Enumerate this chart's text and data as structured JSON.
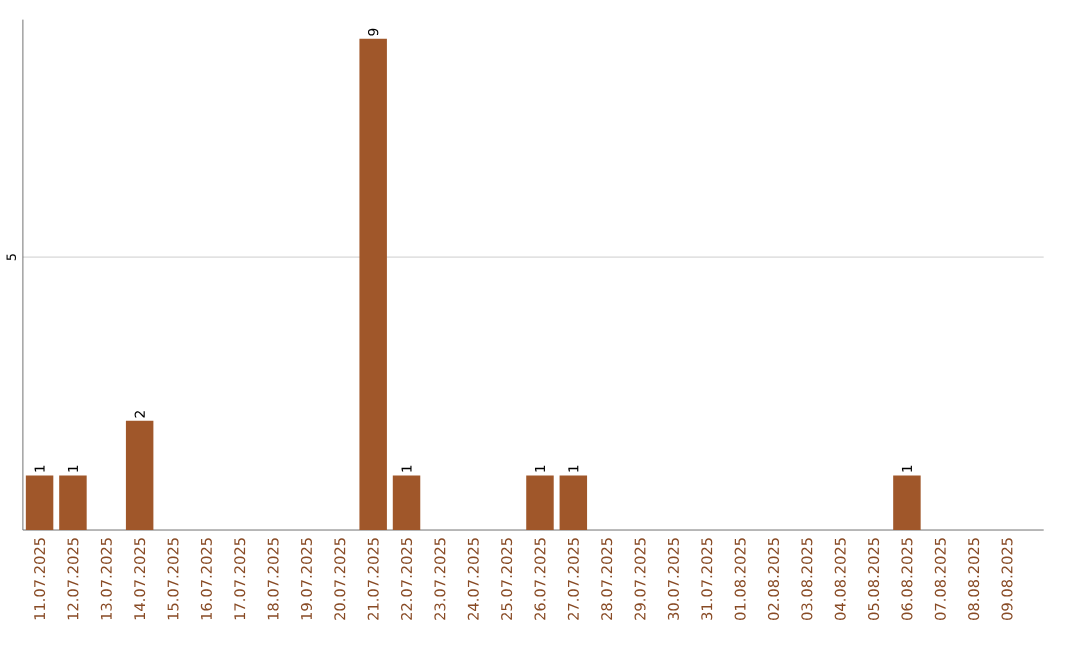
{
  "chart_data": {
    "type": "bar",
    "categories": [
      "11.07.2025",
      "12.07.2025",
      "13.07.2025",
      "14.07.2025",
      "15.07.2025",
      "16.07.2025",
      "17.07.2025",
      "18.07.2025",
      "19.07.2025",
      "20.07.2025",
      "21.07.2025",
      "22.07.2025",
      "23.07.2025",
      "24.07.2025",
      "25.07.2025",
      "26.07.2025",
      "27.07.2025",
      "28.07.2025",
      "29.07.2025",
      "30.07.2025",
      "31.07.2025",
      "01.08.2025",
      "02.08.2025",
      "03.08.2025",
      "04.08.2025",
      "05.08.2025",
      "06.08.2025",
      "07.08.2025",
      "08.08.2025",
      "09.08.2025"
    ],
    "values": [
      1,
      1,
      0,
      2,
      0,
      0,
      0,
      0,
      0,
      0,
      9,
      1,
      0,
      0,
      0,
      1,
      1,
      0,
      0,
      0,
      0,
      0,
      0,
      0,
      0,
      0,
      1,
      0,
      0,
      0
    ],
    "value_labels": [
      "1",
      "1",
      null,
      "2",
      null,
      null,
      null,
      null,
      null,
      null,
      "9",
      "1",
      null,
      null,
      null,
      "1",
      "1",
      null,
      null,
      null,
      null,
      null,
      null,
      null,
      null,
      null,
      "1",
      null,
      null,
      null
    ],
    "color": "#a0572a",
    "ylim": [
      0,
      9.35
    ],
    "yticks": [
      5
    ],
    "grid": "y"
  }
}
